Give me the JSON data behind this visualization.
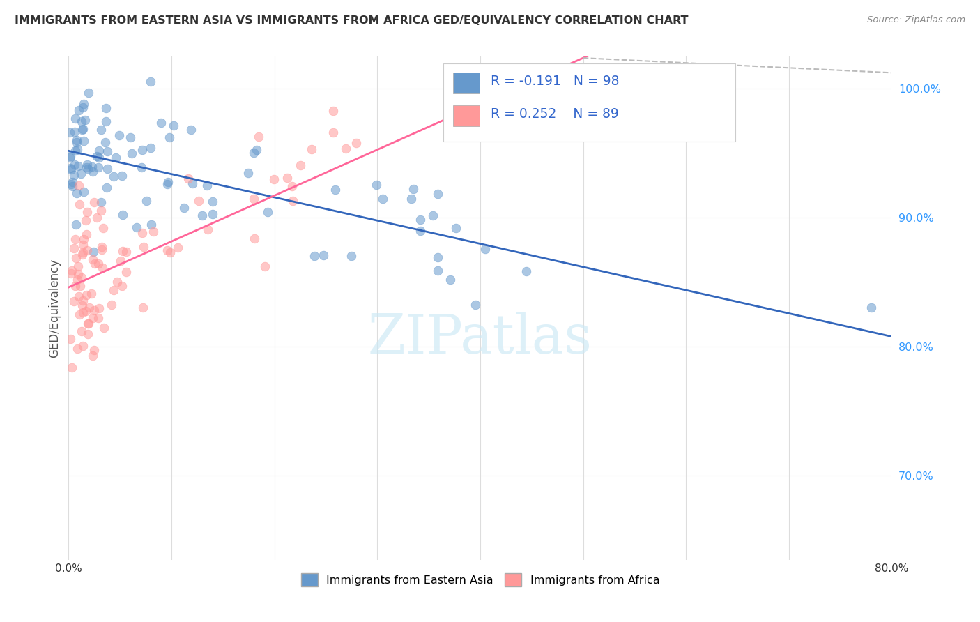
{
  "title": "IMMIGRANTS FROM EASTERN ASIA VS IMMIGRANTS FROM AFRICA GED/EQUIVALENCY CORRELATION CHART",
  "source": "Source: ZipAtlas.com",
  "ylabel": "GED/Equivalency",
  "x_min": 0.0,
  "x_max": 0.8,
  "y_min": 0.635,
  "y_max": 1.025,
  "y_ticks": [
    0.7,
    0.8,
    0.9,
    1.0
  ],
  "blue_color": "#6699CC",
  "pink_color": "#FF9999",
  "blue_line_color": "#3366BB",
  "pink_line_color": "#FF6699",
  "dashed_line_color": "#BBBBBB",
  "legend_label_blue": "Immigrants from Eastern Asia",
  "legend_label_pink": "Immigrants from Africa",
  "R_blue": -0.191,
  "N_blue": 98,
  "R_pink": 0.252,
  "N_pink": 89,
  "watermark": "ZIPatlas",
  "background_color": "#FFFFFF",
  "grid_color": "#DDDDDD"
}
